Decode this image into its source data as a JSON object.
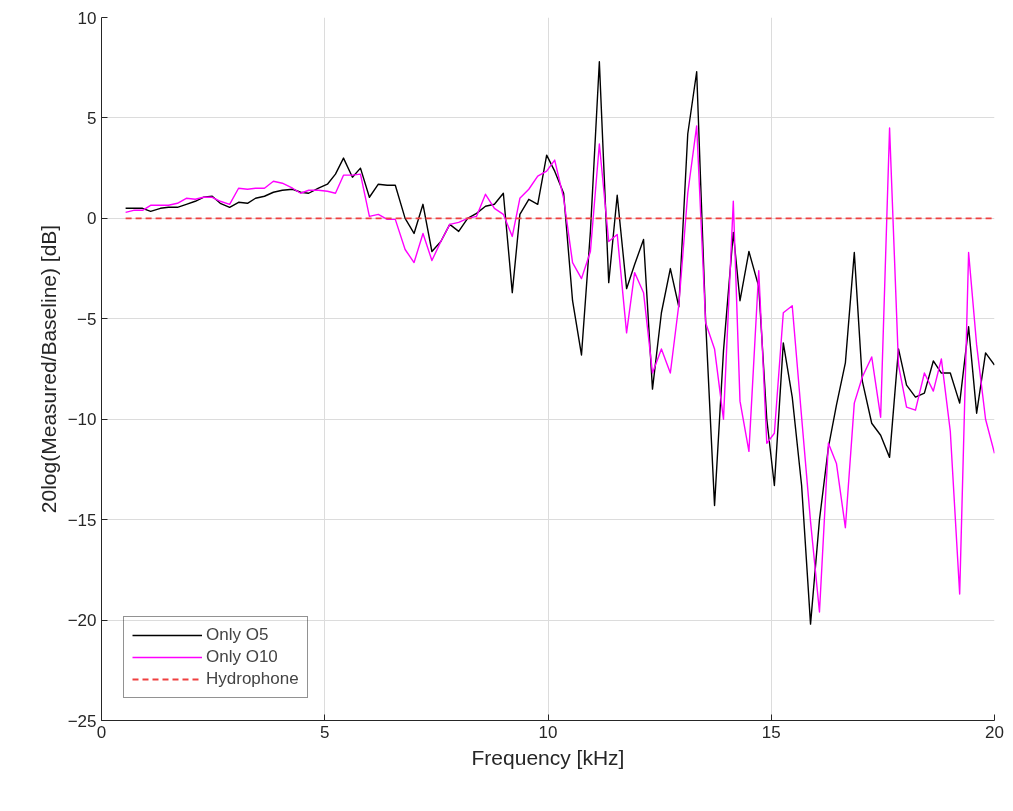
{
  "chart_data": {
    "type": "line",
    "xlabel": "Frequency [kHz]",
    "ylabel": "20log(Measured/Baseline) [dB]",
    "xlim": [
      0,
      20
    ],
    "xticks": [
      0,
      5,
      10,
      15,
      20
    ],
    "ylim": [
      -25,
      10
    ],
    "yticks": [
      -25,
      -20,
      -15,
      -10,
      -5,
      0,
      5,
      10
    ],
    "grid": true,
    "legend": "bottom left",
    "line_style": "solid",
    "x": [
      0.54,
      0.72,
      0.92,
      1.1,
      1.32,
      1.5,
      1.7,
      1.9,
      2.1,
      2.28,
      2.48,
      2.66,
      2.87,
      3.07,
      3.27,
      3.45,
      3.65,
      3.85,
      4.05,
      4.28,
      4.46,
      4.64,
      4.86,
      5.06,
      5.24,
      5.42,
      5.62,
      5.8,
      6.0,
      6.2,
      6.4,
      6.58,
      6.8,
      7.0,
      7.2,
      7.4,
      7.6,
      7.8,
      8.0,
      8.2,
      8.4,
      8.6,
      8.8,
      9.0,
      9.2,
      9.37,
      9.57,
      9.77,
      9.97,
      10.15,
      10.35,
      10.55,
      10.75,
      10.95,
      11.15,
      11.36,
      11.55,
      11.76,
      11.94,
      12.14,
      12.34,
      12.54,
      12.74,
      12.93,
      13.13,
      13.33,
      13.53,
      13.73,
      13.93,
      14.15,
      14.3,
      14.5,
      14.72,
      14.9,
      15.07,
      15.27,
      15.47,
      15.68,
      15.88,
      16.08,
      16.28,
      16.46,
      16.66,
      16.86,
      17.04,
      17.25,
      17.45,
      17.65,
      17.85,
      18.03,
      18.23,
      18.43,
      18.63,
      18.81,
      19.01,
      19.22,
      19.42,
      19.6,
      19.8,
      20.0
    ],
    "series": [
      {
        "name": "Only O5",
        "color": "#000000",
        "values": [
          0.5,
          0.5,
          0.5,
          0.35,
          0.5,
          0.55,
          0.55,
          0.7,
          0.85,
          1.05,
          1.1,
          0.75,
          0.55,
          0.8,
          0.75,
          1.0,
          1.1,
          1.3,
          1.4,
          1.45,
          1.3,
          1.25,
          1.5,
          1.7,
          2.2,
          3.0,
          2.05,
          2.5,
          1.05,
          1.7,
          1.65,
          1.65,
          0.0,
          -0.75,
          0.7,
          -1.65,
          -1.15,
          -0.3,
          -0.65,
          0.0,
          0.25,
          0.6,
          0.7,
          1.25,
          -3.7,
          0.2,
          0.95,
          0.7,
          3.15,
          2.35,
          1.25,
          -4.1,
          -6.8,
          -0.65,
          7.8,
          -3.2,
          1.15,
          -3.5,
          -2.3,
          -1.05,
          -8.5,
          -4.7,
          -2.5,
          -4.4,
          4.2,
          7.3,
          -5.1,
          -14.3,
          -6.6,
          -0.7,
          -4.1,
          -1.65,
          -3.4,
          -10,
          -13.3,
          -6.2,
          -8.9,
          -13.3,
          -20.2,
          -15,
          -11.4,
          -9.3,
          -7.2,
          -1.7,
          -8.1,
          -10.2,
          -10.8,
          -11.9,
          -6.5,
          -8.3,
          -8.9,
          -8.7,
          -7.1,
          -7.7,
          -7.7,
          -9.2,
          -5.4,
          -9.7,
          -6.7,
          -7.3
        ]
      },
      {
        "name": "Only O10",
        "color": "#ff00ff",
        "values": [
          0.3,
          0.4,
          0.4,
          0.65,
          0.65,
          0.65,
          0.75,
          1.0,
          0.95,
          1.05,
          1.05,
          0.85,
          0.7,
          1.5,
          1.45,
          1.5,
          1.5,
          1.85,
          1.75,
          1.5,
          1.25,
          1.4,
          1.4,
          1.35,
          1.25,
          2.15,
          2.15,
          2.2,
          0.1,
          0.2,
          -0.05,
          -0.05,
          -1.55,
          -2.2,
          -0.75,
          -2.1,
          -1.15,
          -0.3,
          -0.2,
          0.0,
          0.1,
          1.2,
          0.5,
          0.2,
          -0.9,
          1.0,
          1.45,
          2.1,
          2.35,
          2.9,
          1.0,
          -2.2,
          -3.0,
          -1.65,
          3.7,
          -1.15,
          -0.8,
          -5.7,
          -2.7,
          -3.7,
          -7.7,
          -6.5,
          -7.7,
          -4.3,
          1.25,
          4.6,
          -5.2,
          -6.5,
          -10,
          0.85,
          -9.1,
          -11.6,
          -2.6,
          -11.2,
          -10.7,
          -4.7,
          -4.35,
          -9.9,
          -15.1,
          -19.6,
          -11.2,
          -12.2,
          -15.4,
          -9.2,
          -7.9,
          -6.9,
          -9.9,
          4.5,
          -7.3,
          -9.4,
          -9.55,
          -7.7,
          -8.6,
          -7.0,
          -10.6,
          -18.7,
          -1.7,
          -6.3,
          -10,
          -11.7
        ]
      },
      {
        "name": "Hydrophone",
        "color": "#f04040",
        "line_style": "dashed",
        "x": [
          0.54,
          20.0
        ],
        "values": [
          0,
          0
        ]
      }
    ]
  }
}
